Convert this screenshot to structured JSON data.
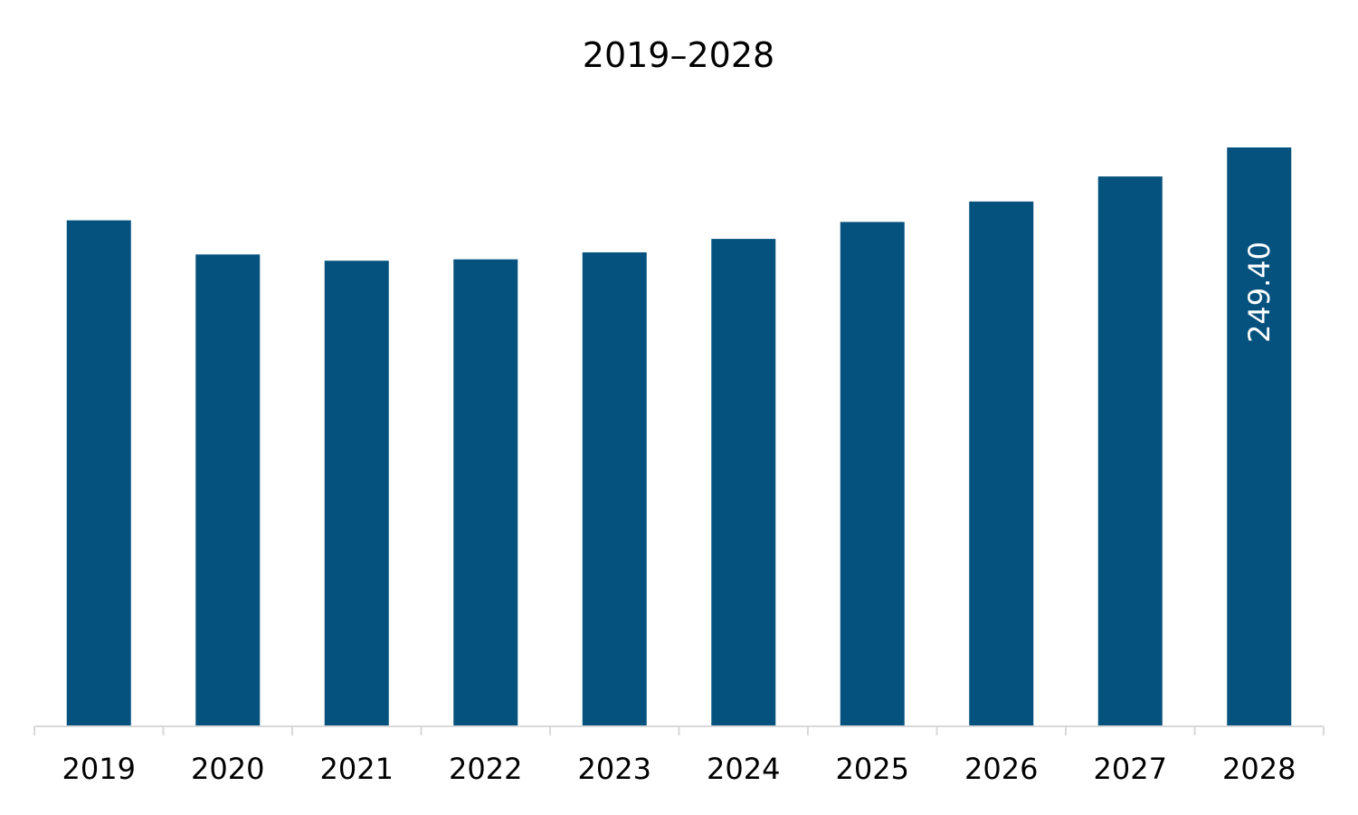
{
  "chart_data": {
    "type": "bar",
    "title": "2019–2028",
    "xlabel": "",
    "ylabel": "",
    "categories": [
      "2019",
      "2020",
      "2021",
      "2022",
      "2023",
      "2024",
      "2025",
      "2026",
      "2027",
      "2028"
    ],
    "values": [
      218,
      203.3,
      200.6,
      201.2,
      204.2,
      210,
      217.3,
      226.1,
      236.9,
      249.4
    ],
    "data_labels": [
      "",
      "",
      "",
      "",
      "",
      "",
      "",
      "",
      "",
      "249.40"
    ],
    "ylim": [
      0,
      249.4
    ],
    "grid": false,
    "legend": "none",
    "colors": {
      "bar": "#06527f",
      "axis": "#d9d9d9",
      "text": "#000000",
      "label": "#ffffff"
    }
  }
}
